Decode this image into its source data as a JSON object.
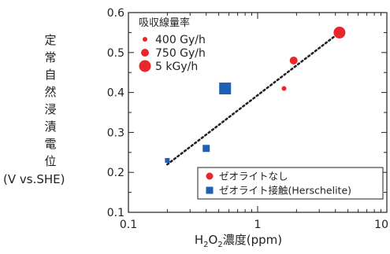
{
  "chart_data": {
    "type": "scatter",
    "title": "",
    "ylabel_chars": [
      "定",
      "常",
      "自",
      "然",
      "浸",
      "漬",
      "電",
      "位"
    ],
    "ylabel_unit": "(V vs.SHE)",
    "xlabel": {
      "pre": "H",
      "sub1": "2",
      "mid": "O",
      "sub2": "2",
      "post": "濃度(ppm)"
    },
    "xscale": "log",
    "xlim": [
      0.1,
      10
    ],
    "ylim": [
      0.1,
      0.6
    ],
    "xticks": [
      0.1,
      1,
      10
    ],
    "xtick_labels": [
      "0.1",
      "1",
      "10"
    ],
    "yticks": [
      0.1,
      0.2,
      0.3,
      0.4,
      0.5,
      0.6
    ],
    "ytick_labels": [
      "0.1",
      "0.2",
      "0.3",
      "0.4",
      "0.5",
      "0.6"
    ],
    "size_legend": {
      "title": "吸収線量率",
      "items": [
        {
          "label": "400 Gy/h",
          "size": "small"
        },
        {
          "label": "750 Gy/h",
          "size": "medium"
        },
        {
          "label": "5 kGy/h",
          "size": "large"
        }
      ],
      "placement": "top-left"
    },
    "marker_legend": {
      "items": [
        {
          "label": "ゼオライトなし",
          "marker": "circle",
          "color": "#e8262b"
        },
        {
          "label": "ゼオライト接触(Herschelite)",
          "marker": "square",
          "color": "#1f5fb4"
        }
      ],
      "placement": "bottom-right"
    },
    "series": [
      {
        "marker": "circle",
        "color": "#e8262b",
        "points": [
          {
            "x": 1.6,
            "y": 0.41,
            "dose": "400 Gy/h"
          },
          {
            "x": 1.9,
            "y": 0.48,
            "dose": "750 Gy/h"
          },
          {
            "x": 4.3,
            "y": 0.55,
            "dose": "5 kGy/h"
          }
        ]
      },
      {
        "marker": "square",
        "color": "#1f5fb4",
        "points": [
          {
            "x": 0.2,
            "y": 0.23,
            "dose": "400 Gy/h"
          },
          {
            "x": 0.4,
            "y": 0.26,
            "dose": "750 Gy/h"
          },
          {
            "x": 0.56,
            "y": 0.41,
            "dose": "5 kGy/h"
          }
        ]
      }
    ],
    "trendline": {
      "style": "dotted",
      "color": "#222222",
      "from": [
        0.2,
        0.22
      ],
      "to": [
        4.3,
        0.55
      ]
    },
    "grid": false
  }
}
